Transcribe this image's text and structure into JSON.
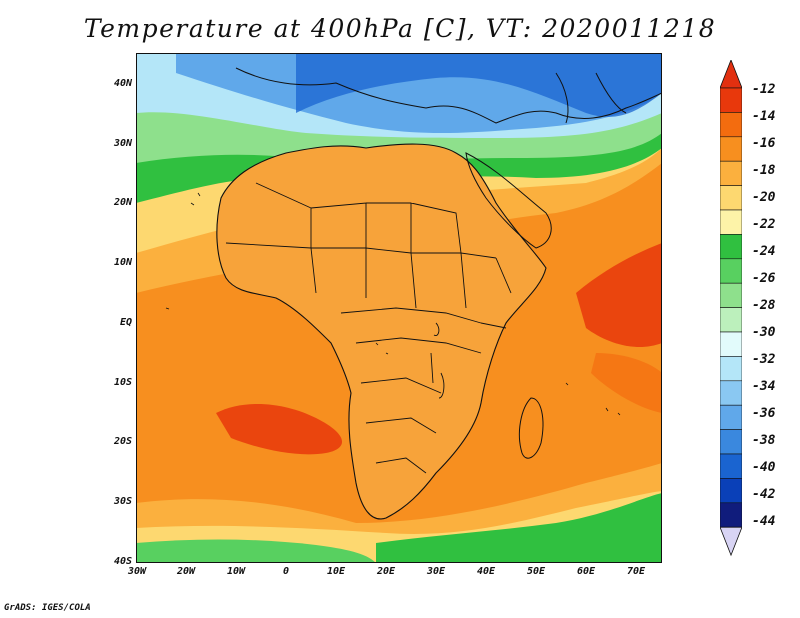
{
  "title": "Temperature at 400hPa [C], VT: 2020011218",
  "credit": "GrADS: IGES/COLA",
  "map": {
    "lat_labels": [
      "40N",
      "30N",
      "20N",
      "10N",
      "EQ",
      "10S",
      "20S",
      "30S",
      "40S"
    ],
    "lon_labels": [
      "30W",
      "20W",
      "10W",
      "0",
      "10E",
      "20E",
      "30E",
      "40E",
      "50E",
      "60E",
      "70E"
    ],
    "lat_range": [
      -40,
      45
    ],
    "lon_range": [
      -30,
      75
    ],
    "field": "temperature",
    "level": "400hPa",
    "units": "C"
  },
  "colorbar": {
    "labels": [
      "-12",
      "-14",
      "-16",
      "-18",
      "-20",
      "-22",
      "-24",
      "-26",
      "-28",
      "-30",
      "-32",
      "-34",
      "-36",
      "-38",
      "-40",
      "-42",
      "-44"
    ],
    "colors": [
      "#e8380c",
      "#f36c0f",
      "#f78f1f",
      "#fbb03e",
      "#fdd870",
      "#fdf3a8",
      "#30c040",
      "#58d060",
      "#8ee08c",
      "#bcf0bc",
      "#e2fbfb",
      "#b4e6f8",
      "#8ac8f2",
      "#60a8ea",
      "#3a88de",
      "#1a64d0",
      "#0a40b8",
      "#101c7c"
    ],
    "top_arrow_color": "#e23010",
    "bottom_arrow_color": "#d8d4f4"
  }
}
